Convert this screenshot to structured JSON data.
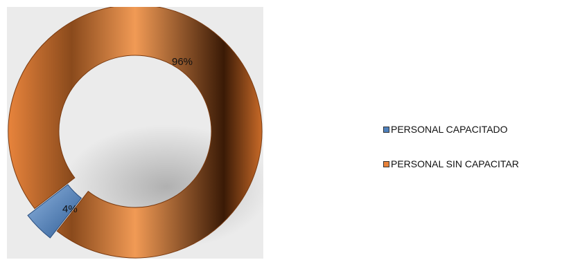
{
  "chart_data": {
    "type": "pie",
    "style": "doughnut-3d",
    "series": [
      {
        "name": "PERSONAL CAPACITADO",
        "value": 4,
        "label": "4%",
        "color": "#4f81bd"
      },
      {
        "name": "PERSONAL  SIN CAPACITAR",
        "value": 96,
        "label": "96%",
        "color": "#e8823a"
      }
    ],
    "legend_position": "right"
  }
}
